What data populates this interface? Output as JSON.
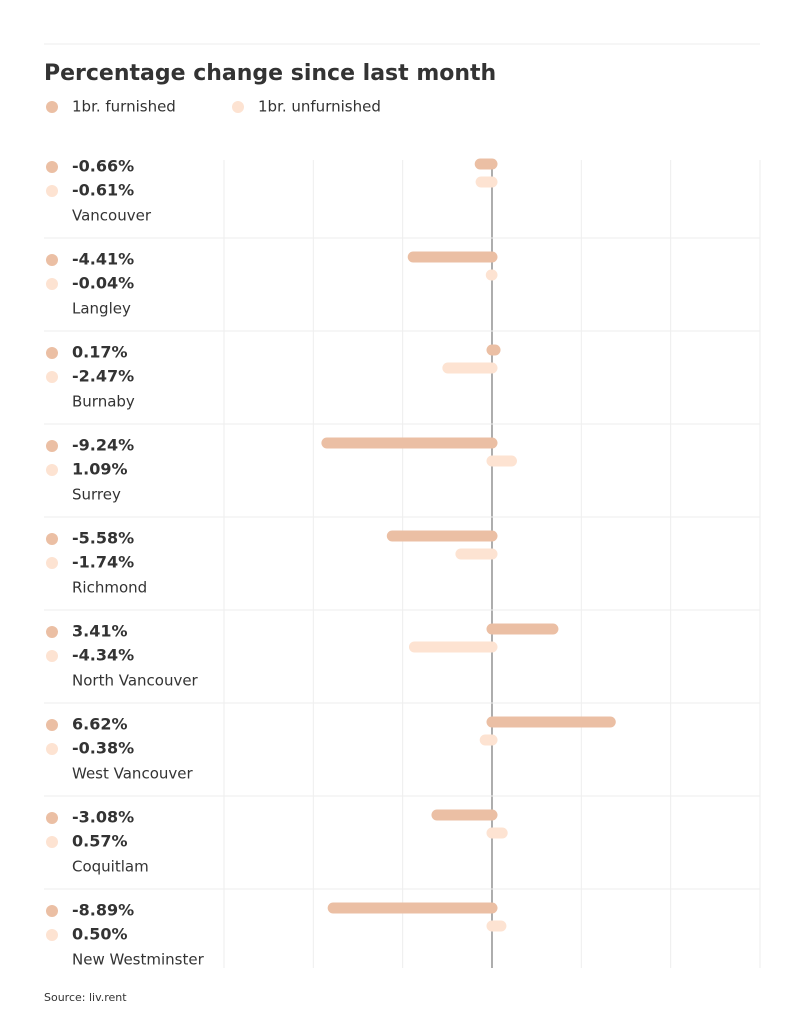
{
  "chart_data": {
    "type": "bar",
    "orientation": "horizontal",
    "title": "Percentage change since last month",
    "source": "Source: liv.rent",
    "categories": [
      "Vancouver",
      "Langley",
      "Burnaby",
      "Surrey",
      "Richmond",
      "North Vancouver",
      "West Vancouver",
      "Coquitlam",
      "New Westminster"
    ],
    "series": [
      {
        "name": "1br. furnished",
        "color": "#ebbfa4",
        "values": [
          -0.66,
          -4.41,
          0.17,
          -9.24,
          -5.58,
          3.41,
          6.62,
          -3.08,
          -8.89
        ],
        "value_labels": [
          "-0.66%",
          "-4.41%",
          "0.17%",
          "-9.24%",
          "-5.58%",
          "3.41%",
          "6.62%",
          "-3.08%",
          "-8.89%"
        ]
      },
      {
        "name": "1br. unfurnished",
        "color": "#fde3d2",
        "values": [
          -0.61,
          -0.04,
          -2.47,
          1.09,
          -1.74,
          -4.34,
          -0.38,
          0.57,
          0.5
        ],
        "value_labels": [
          "-0.61%",
          "-0.04%",
          "-2.47%",
          "1.09%",
          "-1.74%",
          "-4.34%",
          "-0.38%",
          "0.57%",
          "0.50%"
        ]
      }
    ],
    "xlim": [
      -15,
      15
    ],
    "xticks": [
      -15,
      -10,
      -5,
      0,
      5,
      10,
      15
    ],
    "grid": true
  }
}
